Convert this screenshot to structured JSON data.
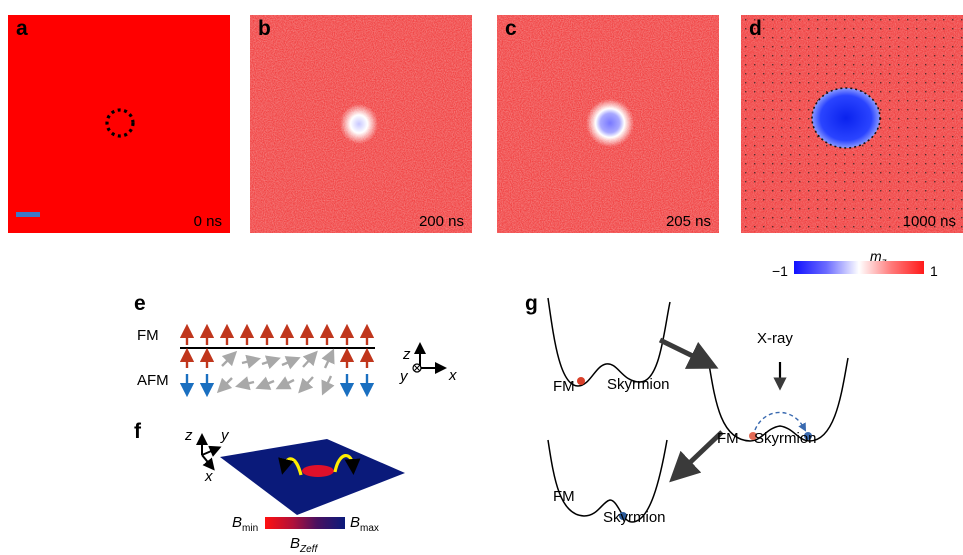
{
  "panels": [
    {
      "label": "a",
      "time": "0 ns"
    },
    {
      "label": "b",
      "time": "200 ns"
    },
    {
      "label": "c",
      "time": "205 ns"
    },
    {
      "label": "d",
      "time": "1000 ns"
    }
  ],
  "colorbar": {
    "quantity": "m",
    "subscript": "z",
    "min_label": "−1",
    "max_label": "1",
    "colors": {
      "low": "#1010ff",
      "mid": "#ffffff",
      "high": "#ff1a1a"
    }
  },
  "e": {
    "label": "e",
    "fm": "FM",
    "afm": "AFM",
    "axes": {
      "z": "z",
      "y": "y",
      "x": "x"
    },
    "colors": {
      "fm_arrow": "#c0361c",
      "afm_arrow": "#1a6fc0",
      "canted_arrow": "#a8a8a8"
    }
  },
  "f": {
    "label": "f",
    "axes": {
      "z": "z",
      "y": "y",
      "x": "x"
    },
    "bmin": "B",
    "bmin_sub": "min",
    "bmax": "B",
    "bmax_sub": "max",
    "bzeff": "B",
    "bzeff_sub": "Zeff",
    "colors": {
      "plane": "#0a1a7a",
      "spot": "#e0102a",
      "swirl": "#ffee00"
    }
  },
  "g": {
    "label": "g",
    "fm": "FM",
    "skyrmion": "Skyrmion",
    "xray": "X-ray",
    "colors": {
      "fm_ball": "#d9402a",
      "sk_ball": "#2a5a9a",
      "flow_arrow": "#3a3a3a"
    }
  }
}
